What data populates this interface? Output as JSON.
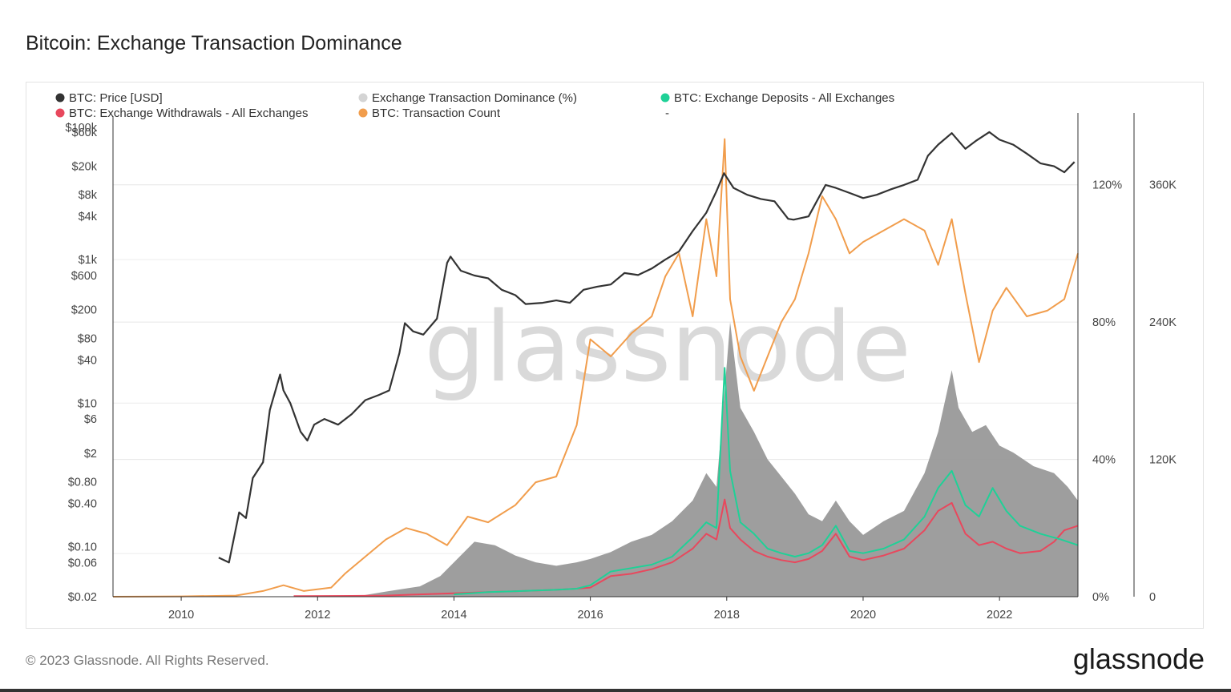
{
  "title": "Bitcoin: Exchange Transaction Dominance",
  "footer": {
    "copyright": "© 2023 Glassnode. All Rights Reserved.",
    "logo": "glassnode"
  },
  "watermark": "glassnode",
  "colors": {
    "price": "#333333",
    "dominance": "#999999",
    "dominance_legend": "#d4d4d4",
    "deposits": "#1fd197",
    "withdrawals": "#e8485d",
    "tx_count": "#f19d4c"
  },
  "legend": [
    {
      "label": "BTC: Price [USD]",
      "color": "#333333"
    },
    {
      "label": "Exchange Transaction Dominance (%)",
      "color": "#d4d4d4"
    },
    {
      "label": "BTC: Exchange Deposits - All Exchanges",
      "color": "#1fd197"
    },
    {
      "label": "BTC: Exchange Withdrawals - All Exchanges",
      "color": "#e8485d"
    },
    {
      "label": "BTC: Transaction Count",
      "color": "#f19d4c"
    },
    {
      "label": "-",
      "color": ""
    }
  ],
  "chart_data": {
    "type": "line",
    "x_axis": {
      "label": "",
      "ticks": [
        "2010",
        "2012",
        "2014",
        "2016",
        "2018",
        "2020",
        "2022"
      ],
      "range": [
        2009.0,
        2023.15
      ]
    },
    "y_left": {
      "scale": "log",
      "ticks": [
        "$100k",
        "$60k",
        "$20k",
        "$8k",
        "$4k",
        "$1k",
        "$600",
        "$200",
        "$80",
        "$40",
        "$10",
        "$6",
        "$2",
        "$0.80",
        "$0.40",
        "$0.10",
        "$0.06",
        "$0.02"
      ],
      "range": [
        0.02,
        100000
      ]
    },
    "y_right_pct": {
      "ticks": [
        "120%",
        "80%",
        "40%",
        "0%"
      ],
      "range": [
        0,
        140
      ]
    },
    "y_right_count": {
      "ticks": [
        "360K",
        "240K",
        "120K",
        "0"
      ],
      "range": [
        0,
        420000
      ]
    },
    "grid": true,
    "legend_position": "top",
    "series": [
      {
        "name": "BTC: Price [USD]",
        "axis": "y_left",
        "x": [
          2010.55,
          2010.7,
          2010.85,
          2010.95,
          2011.05,
          2011.2,
          2011.3,
          2011.45,
          2011.5,
          2011.6,
          2011.75,
          2011.85,
          2011.95,
          2012.1,
          2012.3,
          2012.5,
          2012.7,
          2012.9,
          2013.05,
          2013.2,
          2013.28,
          2013.4,
          2013.55,
          2013.75,
          2013.9,
          2013.95,
          2014.1,
          2014.3,
          2014.5,
          2014.7,
          2014.9,
          2015.05,
          2015.3,
          2015.5,
          2015.7,
          2015.9,
          2016.1,
          2016.3,
          2016.5,
          2016.7,
          2016.9,
          2017.1,
          2017.3,
          2017.5,
          2017.7,
          2017.85,
          2017.96,
          2018.1,
          2018.3,
          2018.5,
          2018.7,
          2018.9,
          2018.98,
          2019.2,
          2019.45,
          2019.6,
          2019.8,
          2020.0,
          2020.2,
          2020.4,
          2020.6,
          2020.8,
          2020.95,
          2021.1,
          2021.3,
          2021.5,
          2021.65,
          2021.85,
          2022.0,
          2022.2,
          2022.4,
          2022.6,
          2022.8,
          2022.95,
          2023.1
        ],
        "y": [
          0.07,
          0.06,
          0.3,
          0.25,
          0.9,
          1.5,
          8,
          25,
          15,
          10,
          4,
          3,
          5,
          6,
          5,
          7,
          11,
          13,
          15,
          50,
          130,
          100,
          90,
          150,
          900,
          1100,
          700,
          600,
          550,
          380,
          320,
          240,
          250,
          270,
          250,
          380,
          420,
          450,
          650,
          610,
          750,
          1000,
          1300,
          2500,
          4500,
          9000,
          16000,
          10000,
          8000,
          7000,
          6500,
          3700,
          3600,
          4000,
          11000,
          10000,
          8500,
          7200,
          8000,
          9500,
          11000,
          13000,
          28000,
          40000,
          58000,
          35000,
          45000,
          60000,
          47000,
          40000,
          30000,
          22000,
          20000,
          16500,
          23000
        ]
      },
      {
        "name": "Exchange Transaction Dominance (%)",
        "axis": "y_right_pct",
        "x": [
          2012.7,
          2013.0,
          2013.5,
          2013.8,
          2014.0,
          2014.3,
          2014.6,
          2014.9,
          2015.2,
          2015.5,
          2015.8,
          2016.0,
          2016.3,
          2016.6,
          2016.9,
          2017.2,
          2017.5,
          2017.7,
          2017.85,
          2017.97,
          2018.05,
          2018.2,
          2018.4,
          2018.6,
          2018.8,
          2019.0,
          2019.2,
          2019.4,
          2019.6,
          2019.8,
          2020.0,
          2020.3,
          2020.6,
          2020.9,
          2021.1,
          2021.3,
          2021.4,
          2021.6,
          2021.8,
          2022.0,
          2022.2,
          2022.5,
          2022.8,
          2023.0,
          2023.15
        ],
        "y": [
          0.5,
          1.5,
          3,
          6,
          10,
          16,
          15,
          12,
          10,
          9,
          10,
          11,
          13,
          16,
          18,
          22,
          28,
          36,
          32,
          60,
          80,
          55,
          48,
          40,
          35,
          30,
          24,
          22,
          28,
          22,
          18,
          22,
          25,
          36,
          48,
          66,
          55,
          48,
          50,
          44,
          42,
          38,
          36,
          32,
          28
        ]
      },
      {
        "name": "BTC: Exchange Deposits - All Exchanges",
        "axis": "y_right_count",
        "x": [
          2014.0,
          2014.5,
          2015.0,
          2015.5,
          2015.8,
          2016.0,
          2016.3,
          2016.6,
          2016.9,
          2017.2,
          2017.5,
          2017.7,
          2017.85,
          2017.97,
          2018.05,
          2018.2,
          2018.4,
          2018.6,
          2018.8,
          2019.0,
          2019.2,
          2019.4,
          2019.6,
          2019.8,
          2020.0,
          2020.3,
          2020.6,
          2020.9,
          2021.1,
          2021.3,
          2021.5,
          2021.7,
          2021.9,
          2022.1,
          2022.3,
          2022.6,
          2022.9,
          2023.15
        ],
        "y": [
          2000,
          4000,
          5000,
          6000,
          7000,
          10000,
          22000,
          25000,
          28000,
          35000,
          52000,
          65000,
          60000,
          200000,
          110000,
          65000,
          55000,
          42000,
          38000,
          35000,
          38000,
          45000,
          62000,
          40000,
          38000,
          42000,
          50000,
          70000,
          95000,
          110000,
          80000,
          70000,
          95000,
          75000,
          62000,
          55000,
          50000,
          45000
        ]
      },
      {
        "name": "BTC: Exchange Withdrawals - All Exchanges",
        "axis": "y_right_count",
        "x": [
          2011.65,
          2012.5,
          2013.0,
          2013.5,
          2014.0,
          2014.5,
          2015.0,
          2015.5,
          2015.8,
          2016.0,
          2016.3,
          2016.6,
          2016.9,
          2017.2,
          2017.5,
          2017.7,
          2017.85,
          2017.97,
          2018.05,
          2018.2,
          2018.4,
          2018.6,
          2018.8,
          2019.0,
          2019.2,
          2019.4,
          2019.6,
          2019.8,
          2020.0,
          2020.3,
          2020.6,
          2020.9,
          2021.1,
          2021.3,
          2021.5,
          2021.7,
          2021.9,
          2022.1,
          2022.3,
          2022.6,
          2022.8,
          2022.95,
          2023.15
        ],
        "y": [
          500,
          700,
          1000,
          2000,
          3000,
          4000,
          5000,
          6000,
          7000,
          8000,
          18000,
          20000,
          24000,
          30000,
          42000,
          55000,
          50000,
          85000,
          60000,
          50000,
          40000,
          35000,
          32000,
          30000,
          33000,
          40000,
          55000,
          35000,
          32000,
          36000,
          42000,
          58000,
          75000,
          82000,
          55000,
          45000,
          48000,
          42000,
          38000,
          40000,
          48000,
          58000,
          62000
        ]
      },
      {
        "name": "BTC: Transaction Count",
        "axis": "y_right_count",
        "x": [
          2009.0,
          2010.0,
          2010.8,
          2011.2,
          2011.5,
          2011.8,
          2012.2,
          2012.4,
          2012.7,
          2013.0,
          2013.3,
          2013.6,
          2013.9,
          2014.2,
          2014.5,
          2014.9,
          2015.2,
          2015.5,
          2015.8,
          2016.0,
          2016.3,
          2016.6,
          2016.9,
          2017.1,
          2017.3,
          2017.5,
          2017.7,
          2017.85,
          2017.97,
          2018.05,
          2018.2,
          2018.4,
          2018.6,
          2018.8,
          2019.0,
          2019.2,
          2019.4,
          2019.6,
          2019.8,
          2020.0,
          2020.3,
          2020.6,
          2020.9,
          2021.1,
          2021.3,
          2021.5,
          2021.7,
          2021.9,
          2022.1,
          2022.4,
          2022.7,
          2022.95,
          2023.15
        ],
        "y": [
          0,
          300,
          1000,
          5000,
          10000,
          5000,
          8000,
          20000,
          35000,
          50000,
          60000,
          55000,
          45000,
          70000,
          65000,
          80000,
          100000,
          105000,
          150000,
          225000,
          210000,
          230000,
          245000,
          280000,
          300000,
          245000,
          330000,
          280000,
          400000,
          260000,
          210000,
          180000,
          210000,
          240000,
          260000,
          300000,
          350000,
          330000,
          300000,
          310000,
          320000,
          330000,
          320000,
          290000,
          330000,
          265000,
          205000,
          250000,
          270000,
          245000,
          250000,
          260000,
          300000
        ]
      }
    ]
  }
}
